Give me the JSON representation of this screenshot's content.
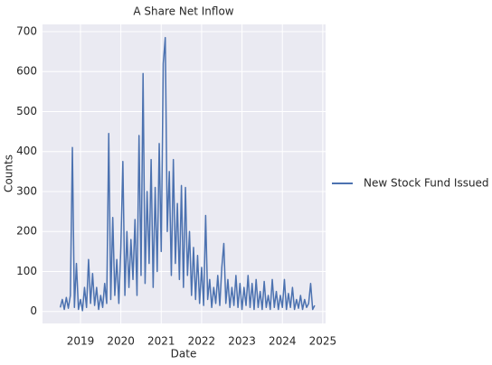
{
  "chart_data": {
    "type": "line",
    "title": "A Share Net Inflow",
    "xlabel": "Date",
    "ylabel": "Counts",
    "x": [
      2018.5,
      2018.55,
      2018.6,
      2018.65,
      2018.7,
      2018.75,
      2018.8,
      2018.85,
      2018.9,
      2018.95,
      2019.0,
      2019.05,
      2019.1,
      2019.15,
      2019.2,
      2019.25,
      2019.3,
      2019.35,
      2019.4,
      2019.45,
      2019.5,
      2019.55,
      2019.6,
      2019.65,
      2019.7,
      2019.75,
      2019.8,
      2019.85,
      2019.9,
      2019.95,
      2020.0,
      2020.05,
      2020.1,
      2020.15,
      2020.2,
      2020.25,
      2020.3,
      2020.35,
      2020.4,
      2020.45,
      2020.5,
      2020.55,
      2020.6,
      2020.65,
      2020.7,
      2020.75,
      2020.8,
      2020.85,
      2020.9,
      2020.95,
      2021.0,
      2021.05,
      2021.1,
      2021.15,
      2021.2,
      2021.25,
      2021.3,
      2021.35,
      2021.4,
      2021.45,
      2021.5,
      2021.55,
      2021.6,
      2021.65,
      2021.7,
      2021.75,
      2021.8,
      2021.85,
      2021.9,
      2021.95,
      2022.0,
      2022.05,
      2022.1,
      2022.15,
      2022.2,
      2022.25,
      2022.3,
      2022.35,
      2022.4,
      2022.45,
      2022.5,
      2022.55,
      2022.6,
      2022.65,
      2022.7,
      2022.75,
      2022.8,
      2022.85,
      2022.9,
      2022.95,
      2023.0,
      2023.05,
      2023.1,
      2023.15,
      2023.2,
      2023.25,
      2023.3,
      2023.35,
      2023.4,
      2023.45,
      2023.5,
      2023.55,
      2023.6,
      2023.65,
      2023.7,
      2023.75,
      2023.8,
      2023.85,
      2023.9,
      2023.95,
      2024.0,
      2024.05,
      2024.1,
      2024.15,
      2024.2,
      2024.25,
      2024.3,
      2024.35,
      2024.4,
      2024.45,
      2024.5,
      2024.55,
      2024.6,
      2024.65,
      2024.7,
      2024.75,
      2024.8
    ],
    "series": [
      {
        "name": "New Stock Fund Issued",
        "color": "#4c72b0",
        "values": [
          10,
          30,
          5,
          35,
          8,
          40,
          410,
          10,
          120,
          5,
          30,
          2,
          60,
          10,
          130,
          20,
          95,
          15,
          60,
          5,
          40,
          10,
          70,
          20,
          445,
          30,
          235,
          40,
          130,
          20,
          160,
          375,
          40,
          200,
          60,
          180,
          80,
          230,
          40,
          440,
          90,
          595,
          70,
          300,
          120,
          380,
          60,
          310,
          100,
          420,
          150,
          620,
          685,
          200,
          350,
          90,
          380,
          120,
          270,
          80,
          315,
          60,
          310,
          90,
          200,
          40,
          160,
          30,
          140,
          20,
          110,
          15,
          240,
          30,
          80,
          10,
          60,
          20,
          90,
          15,
          110,
          170,
          20,
          80,
          10,
          60,
          15,
          90,
          10,
          70,
          5,
          60,
          15,
          90,
          10,
          70,
          5,
          80,
          10,
          50,
          5,
          75,
          10,
          40,
          5,
          80,
          10,
          50,
          5,
          40,
          10,
          80,
          5,
          45,
          10,
          60,
          5,
          30,
          8,
          40,
          5,
          30,
          10,
          20,
          70,
          5,
          15
        ]
      }
    ],
    "xlim": [
      2018.06,
      2025.07
    ],
    "ylim": [
      -30,
      718
    ],
    "xticks": [
      2019,
      2020,
      2021,
      2022,
      2023,
      2024,
      2025
    ],
    "yticks": [
      0,
      100,
      200,
      300,
      400,
      500,
      600,
      700
    ],
    "grid": true,
    "legend": "outside right"
  }
}
